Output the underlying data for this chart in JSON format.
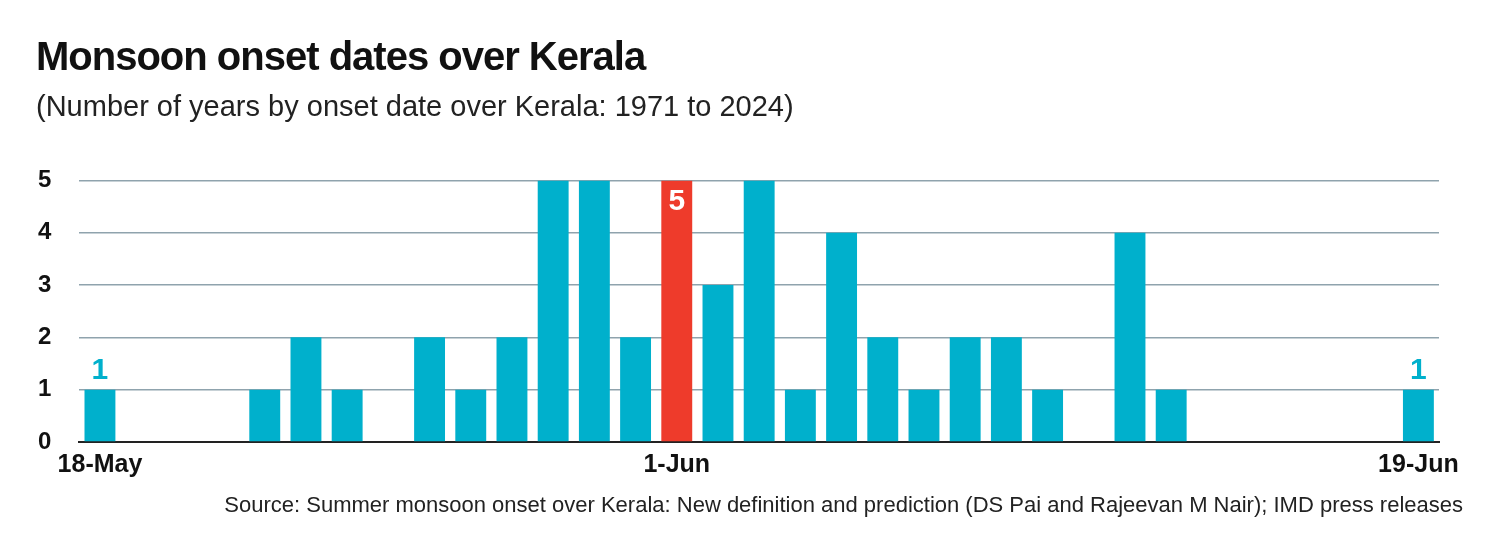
{
  "chart_data": {
    "type": "bar",
    "title": "Monsoon onset dates over Kerala",
    "subtitle": "(Number of years by onset date over Kerala: 1971 to 2024)",
    "categories": [
      "18-May",
      null,
      null,
      null,
      null,
      null,
      null,
      null,
      null,
      null,
      null,
      null,
      null,
      null,
      "1-Jun",
      null,
      null,
      null,
      null,
      null,
      null,
      null,
      null,
      null,
      null,
      null,
      null,
      null,
      null,
      null,
      null,
      null,
      "19-Jun"
    ],
    "values": [
      1,
      0,
      0,
      0,
      1,
      2,
      1,
      0,
      2,
      1,
      2,
      5,
      5,
      2,
      5,
      3,
      5,
      1,
      4,
      2,
      1,
      2,
      2,
      1,
      0,
      4,
      1,
      0,
      0,
      0,
      0,
      0,
      1
    ],
    "colors": [
      "#00b0cc",
      "#00b0cc",
      "#00b0cc",
      "#00b0cc",
      "#00b0cc",
      "#00b0cc",
      "#00b0cc",
      "#00b0cc",
      "#00b0cc",
      "#00b0cc",
      "#00b0cc",
      "#00b0cc",
      "#00b0cc",
      "#00b0cc",
      "#ee3b2b",
      "#00b0cc",
      "#00b0cc",
      "#00b0cc",
      "#00b0cc",
      "#00b0cc",
      "#00b0cc",
      "#00b0cc",
      "#00b0cc",
      "#00b0cc",
      "#00b0cc",
      "#00b0cc",
      "#00b0cc",
      "#00b0cc",
      "#00b0cc",
      "#00b0cc",
      "#00b0cc",
      "#00b0cc",
      "#00b0cc"
    ],
    "value_labels": [
      "1",
      null,
      null,
      null,
      null,
      null,
      null,
      null,
      null,
      null,
      null,
      null,
      null,
      null,
      "5",
      null,
      null,
      null,
      null,
      null,
      null,
      null,
      null,
      null,
      null,
      null,
      null,
      null,
      null,
      null,
      null,
      null,
      "1"
    ],
    "ylim": [
      0,
      5
    ],
    "yticks": [
      0,
      1,
      2,
      3,
      4,
      5
    ],
    "grid": "y",
    "legend": false,
    "annotations": [
      "Source: Summer monsoon onset over Kerala: New definition and prediction (DS Pai and Rajeevan M Nair); IMD press releases"
    ]
  }
}
